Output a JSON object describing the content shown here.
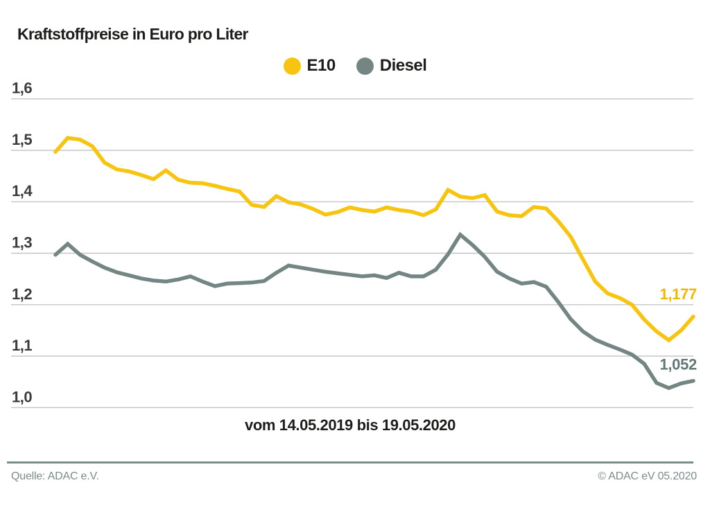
{
  "title": "Kraftstoffpreise in Euro pro Liter",
  "legend": {
    "items": [
      {
        "label": "E10",
        "color": "#f7c40f"
      },
      {
        "label": "Diesel",
        "color": "#748683"
      }
    ]
  },
  "chart_data": {
    "type": "line",
    "title": "Kraftstoffpreise in Euro pro Liter",
    "xlabel": "vom 14.05.2019 bis 19.05.2020",
    "x_start": "14.05.2019",
    "x_end": "19.05.2020",
    "x_unit": "week",
    "ylim": [
      1.0,
      1.6
    ],
    "grid": "horizontal",
    "legend_position": "top-center",
    "yticks": [
      {
        "value": 1.6,
        "label": "1,6"
      },
      {
        "value": 1.5,
        "label": "1,5"
      },
      {
        "value": 1.4,
        "label": "1,4"
      },
      {
        "value": 1.3,
        "label": "1,3"
      },
      {
        "value": 1.2,
        "label": "1,2"
      },
      {
        "value": 1.1,
        "label": "1,1"
      },
      {
        "value": 1.0,
        "label": "1,0"
      }
    ],
    "series": [
      {
        "name": "E10",
        "color": "#f7c40f",
        "label_color": "#f2b705",
        "end_label": "1,177",
        "end_value": 1.177,
        "values": [
          1.497,
          1.524,
          1.521,
          1.508,
          1.476,
          1.463,
          1.459,
          1.452,
          1.444,
          1.461,
          1.443,
          1.437,
          1.436,
          1.431,
          1.425,
          1.42,
          1.394,
          1.39,
          1.411,
          1.399,
          1.395,
          1.386,
          1.375,
          1.38,
          1.389,
          1.384,
          1.381,
          1.389,
          1.384,
          1.381,
          1.374,
          1.385,
          1.423,
          1.41,
          1.407,
          1.413,
          1.381,
          1.374,
          1.372,
          1.39,
          1.387,
          1.362,
          1.332,
          1.288,
          1.245,
          1.222,
          1.213,
          1.2,
          1.171,
          1.148,
          1.131,
          1.15,
          1.177
        ]
      },
      {
        "name": "Diesel",
        "color": "#748683",
        "label_color": "#627876",
        "end_label": "1,052",
        "end_value": 1.052,
        "values": [
          1.297,
          1.318,
          1.297,
          1.284,
          1.272,
          1.263,
          1.257,
          1.251,
          1.247,
          1.245,
          1.249,
          1.255,
          1.245,
          1.236,
          1.241,
          1.242,
          1.243,
          1.246,
          1.262,
          1.276,
          1.272,
          1.268,
          1.264,
          1.261,
          1.258,
          1.255,
          1.257,
          1.252,
          1.262,
          1.255,
          1.255,
          1.268,
          1.298,
          1.336,
          1.316,
          1.293,
          1.264,
          1.251,
          1.241,
          1.244,
          1.235,
          1.205,
          1.172,
          1.148,
          1.132,
          1.122,
          1.113,
          1.103,
          1.085,
          1.048,
          1.038,
          1.047,
          1.052
        ]
      }
    ]
  },
  "footer": {
    "source": "Quelle: ADAC e.V.",
    "copyright": "© ADAC eV 05.2020"
  }
}
